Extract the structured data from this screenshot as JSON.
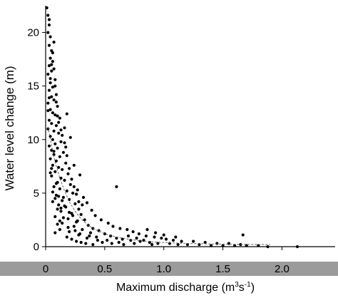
{
  "chart_data": {
    "type": "scatter",
    "title": "",
    "xlabel": "Maximum discharge (m",
    "xlabel_sup1": "3",
    "xlabel_mid": "s",
    "xlabel_sup2": "-1",
    "xlabel_end": ")",
    "ylabel": "Water level change (m)",
    "xlim": [
      0,
      2.45
    ],
    "ylim": [
      0,
      22.5
    ],
    "x_ticks": [
      {
        "value": 0,
        "label": "0"
      },
      {
        "value": 0.5,
        "label": "0.5"
      },
      {
        "value": 1.0,
        "label": "1.0"
      },
      {
        "value": 1.5,
        "label": "1.5"
      },
      {
        "value": 2.0,
        "label": "2.0"
      }
    ],
    "y_ticks": [
      {
        "value": 0,
        "label": "0"
      },
      {
        "value": 5,
        "label": "5"
      },
      {
        "value": 10,
        "label": "10"
      },
      {
        "value": 15,
        "label": "15"
      },
      {
        "value": 20,
        "label": "20"
      }
    ],
    "grid": false,
    "series": [
      {
        "marker_color": "#000000",
        "points": [
          [
            0.01,
            22.3
          ],
          [
            0.02,
            21.6
          ],
          [
            0.03,
            21.2
          ],
          [
            0.03,
            20.7
          ],
          [
            0.02,
            20.0
          ],
          [
            0.04,
            19.6
          ],
          [
            0.03,
            18.8
          ],
          [
            0.05,
            18.3
          ],
          [
            0.04,
            17.6
          ],
          [
            0.06,
            17.3
          ],
          [
            0.03,
            16.9
          ],
          [
            0.05,
            16.4
          ],
          [
            0.02,
            16.1
          ],
          [
            0.07,
            16.6
          ],
          [
            0.08,
            15.6
          ],
          [
            0.04,
            15.3
          ],
          [
            0.06,
            14.9
          ],
          [
            0.03,
            14.6
          ],
          [
            0.09,
            14.2
          ],
          [
            0.05,
            14.0
          ],
          [
            0.07,
            13.7
          ],
          [
            0.02,
            13.4
          ],
          [
            0.1,
            13.1
          ],
          [
            0.04,
            12.8
          ],
          [
            0.06,
            12.5
          ],
          [
            0.08,
            12.3
          ],
          [
            0.12,
            12.0
          ],
          [
            0.03,
            11.8
          ],
          [
            0.05,
            11.5
          ],
          [
            0.09,
            11.3
          ],
          [
            0.02,
            11.0
          ],
          [
            0.07,
            10.8
          ],
          [
            0.11,
            10.6
          ],
          [
            0.04,
            10.3
          ],
          [
            0.06,
            10.0
          ],
          [
            0.13,
            9.8
          ],
          [
            0.08,
            9.6
          ],
          [
            0.03,
            9.4
          ],
          [
            0.1,
            9.2
          ],
          [
            0.05,
            9.0
          ],
          [
            0.15,
            8.8
          ],
          [
            0.07,
            8.6
          ],
          [
            0.12,
            8.4
          ],
          [
            0.04,
            8.2
          ],
          [
            0.09,
            8.0
          ],
          [
            0.17,
            7.8
          ],
          [
            0.06,
            7.6
          ],
          [
            0.11,
            7.4
          ],
          [
            0.14,
            7.2
          ],
          [
            0.08,
            7.0
          ],
          [
            0.19,
            6.8
          ],
          [
            0.05,
            6.6
          ],
          [
            0.13,
            6.4
          ],
          [
            0.16,
            6.2
          ],
          [
            0.1,
            6.0
          ],
          [
            0.21,
            5.8
          ],
          [
            0.07,
            5.6
          ],
          [
            0.12,
            5.4
          ],
          [
            0.18,
            5.2
          ],
          [
            0.23,
            5.0
          ],
          [
            0.09,
            4.8
          ],
          [
            0.15,
            4.6
          ],
          [
            0.2,
            4.4
          ],
          [
            0.06,
            4.2
          ],
          [
            0.25,
            4.0
          ],
          [
            0.11,
            3.9
          ],
          [
            0.17,
            3.7
          ],
          [
            0.28,
            3.5
          ],
          [
            0.13,
            3.3
          ],
          [
            0.22,
            3.1
          ],
          [
            0.3,
            3.0
          ],
          [
            0.08,
            2.8
          ],
          [
            0.19,
            2.6
          ],
          [
            0.33,
            2.5
          ],
          [
            0.26,
            2.3
          ],
          [
            0.14,
            2.2
          ],
          [
            0.36,
            2.0
          ],
          [
            0.24,
            1.9
          ],
          [
            0.4,
            1.7
          ],
          [
            0.31,
            1.6
          ],
          [
            0.45,
            1.5
          ],
          [
            0.2,
            1.4
          ],
          [
            0.38,
            1.3
          ],
          [
            0.5,
            1.2
          ],
          [
            0.28,
            1.1
          ],
          [
            0.55,
            1.0
          ],
          [
            0.43,
            0.9
          ],
          [
            0.6,
            0.8
          ],
          [
            0.35,
            0.8
          ],
          [
            0.65,
            0.7
          ],
          [
            0.52,
            0.6
          ],
          [
            0.72,
            0.6
          ],
          [
            0.8,
            0.5
          ],
          [
            0.62,
            0.4
          ],
          [
            0.88,
            0.4
          ],
          [
            0.95,
            0.3
          ],
          [
            0.75,
            0.3
          ],
          [
            1.05,
            0.3
          ],
          [
            1.12,
            0.2
          ],
          [
            0.9,
            0.2
          ],
          [
            1.2,
            0.2
          ],
          [
            1.3,
            0.2
          ],
          [
            1.4,
            0.1
          ],
          [
            1.5,
            0.1
          ],
          [
            1.6,
            0.1
          ],
          [
            1.7,
            0.1
          ],
          [
            1.8,
            0.1
          ],
          [
            1.88,
            0.0
          ],
          [
            2.13,
            0.0
          ],
          [
            1.67,
            1.1
          ],
          [
            0.6,
            5.6
          ],
          [
            0.17,
            9.3
          ],
          [
            0.18,
            12.4
          ],
          [
            0.16,
            11.1
          ],
          [
            0.21,
            10.2
          ],
          [
            0.24,
            7.6
          ],
          [
            0.29,
            6.7
          ],
          [
            0.27,
            5.3
          ],
          [
            0.32,
            4.6
          ],
          [
            0.35,
            4.1
          ],
          [
            0.39,
            3.4
          ],
          [
            0.42,
            2.9
          ],
          [
            0.47,
            2.5
          ],
          [
            0.53,
            2.2
          ],
          [
            0.57,
            1.9
          ],
          [
            0.63,
            1.7
          ],
          [
            0.69,
            1.6
          ],
          [
            0.74,
            1.4
          ],
          [
            0.79,
            1.2
          ],
          [
            0.85,
            1.0
          ],
          [
            0.92,
            0.9
          ],
          [
            0.98,
            0.8
          ],
          [
            1.02,
            0.7
          ],
          [
            1.08,
            0.6
          ],
          [
            1.15,
            0.5
          ],
          [
            1.25,
            0.5
          ],
          [
            1.35,
            0.4
          ],
          [
            1.45,
            0.3
          ],
          [
            1.55,
            0.3
          ],
          [
            1.65,
            0.2
          ],
          [
            0.05,
            7.3
          ],
          [
            0.07,
            8.9
          ],
          [
            0.09,
            5.9
          ],
          [
            0.11,
            4.7
          ],
          [
            0.13,
            3.6
          ],
          [
            0.15,
            2.7
          ],
          [
            0.1,
            2.1
          ],
          [
            0.12,
            1.6
          ],
          [
            0.08,
            1.3
          ],
          [
            0.18,
            0.9
          ],
          [
            0.22,
            0.7
          ],
          [
            0.26,
            0.5
          ],
          [
            0.3,
            0.4
          ],
          [
            0.34,
            0.3
          ],
          [
            0.4,
            0.2
          ],
          [
            0.14,
            4.3
          ],
          [
            0.16,
            3.8
          ],
          [
            0.2,
            3.2
          ],
          [
            0.23,
            2.9
          ],
          [
            0.27,
            2.4
          ],
          [
            0.04,
            6.9
          ],
          [
            0.06,
            5.1
          ],
          [
            0.08,
            4.5
          ],
          [
            0.1,
            3.5
          ],
          [
            0.12,
            2.4
          ],
          [
            0.19,
            1.8
          ],
          [
            0.25,
            1.5
          ],
          [
            0.29,
            1.2
          ],
          [
            0.37,
            1.0
          ],
          [
            0.44,
            0.6
          ],
          [
            0.48,
            0.4
          ],
          [
            0.56,
            0.3
          ],
          [
            0.66,
            0.2
          ],
          [
            0.7,
            1.0
          ],
          [
            0.77,
            0.8
          ],
          [
            0.83,
            0.6
          ],
          [
            0.86,
            1.6
          ],
          [
            0.93,
            1.3
          ],
          [
            1.0,
            1.1
          ],
          [
            1.1,
            0.9
          ],
          [
            0.02,
            12.7
          ],
          [
            0.03,
            13.9
          ],
          [
            0.04,
            15.7
          ],
          [
            0.05,
            17.0
          ],
          [
            0.06,
            18.1
          ],
          [
            0.07,
            19.1
          ],
          [
            0.08,
            15.0
          ],
          [
            0.09,
            13.5
          ],
          [
            0.1,
            12.2
          ],
          [
            0.11,
            11.6
          ],
          [
            0.13,
            10.9
          ],
          [
            0.14,
            10.4
          ],
          [
            0.16,
            9.7
          ],
          [
            0.18,
            8.5
          ],
          [
            0.2,
            7.3
          ],
          [
            0.22,
            6.3
          ],
          [
            0.24,
            5.6
          ],
          [
            0.26,
            4.9
          ],
          [
            0.28,
            4.2
          ],
          [
            0.31,
            3.9
          ]
        ]
      }
    ],
    "trend_line": [
      [
        0.02,
        11.2
      ],
      [
        0.05,
        9.4
      ],
      [
        0.08,
        7.9
      ],
      [
        0.12,
        6.4
      ],
      [
        0.16,
        5.2
      ],
      [
        0.2,
        4.2
      ],
      [
        0.25,
        3.3
      ],
      [
        0.3,
        2.6
      ],
      [
        0.35,
        2.1
      ],
      [
        0.4,
        1.7
      ],
      [
        0.5,
        1.2
      ],
      [
        0.6,
        0.9
      ],
      [
        0.7,
        0.7
      ],
      [
        0.8,
        0.55
      ],
      [
        0.9,
        0.45
      ],
      [
        1.0,
        0.38
      ],
      [
        1.2,
        0.3
      ],
      [
        1.4,
        0.25
      ],
      [
        1.6,
        0.22
      ],
      [
        1.9,
        0.2
      ]
    ]
  }
}
